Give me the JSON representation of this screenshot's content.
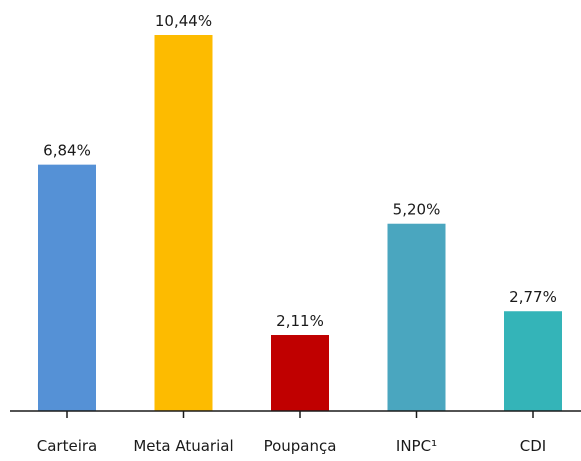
{
  "chart_data": {
    "type": "bar",
    "categories": [
      "Carteira",
      "Meta Atuarial",
      "Poupança",
      "INPC¹",
      "CDI"
    ],
    "values": [
      6.84,
      10.44,
      2.11,
      5.2,
      2.77
    ],
    "value_labels": [
      "6,84%",
      "10,44%",
      "2,11%",
      "5,20%",
      "2,77%"
    ],
    "colors": [
      "#5591d6",
      "#fdbb00",
      "#c00000",
      "#4aa6bf",
      "#34b4b8"
    ],
    "title": "",
    "xlabel": "",
    "ylabel": "",
    "ylim": [
      0,
      11
    ],
    "grid": false,
    "legend": "none"
  }
}
